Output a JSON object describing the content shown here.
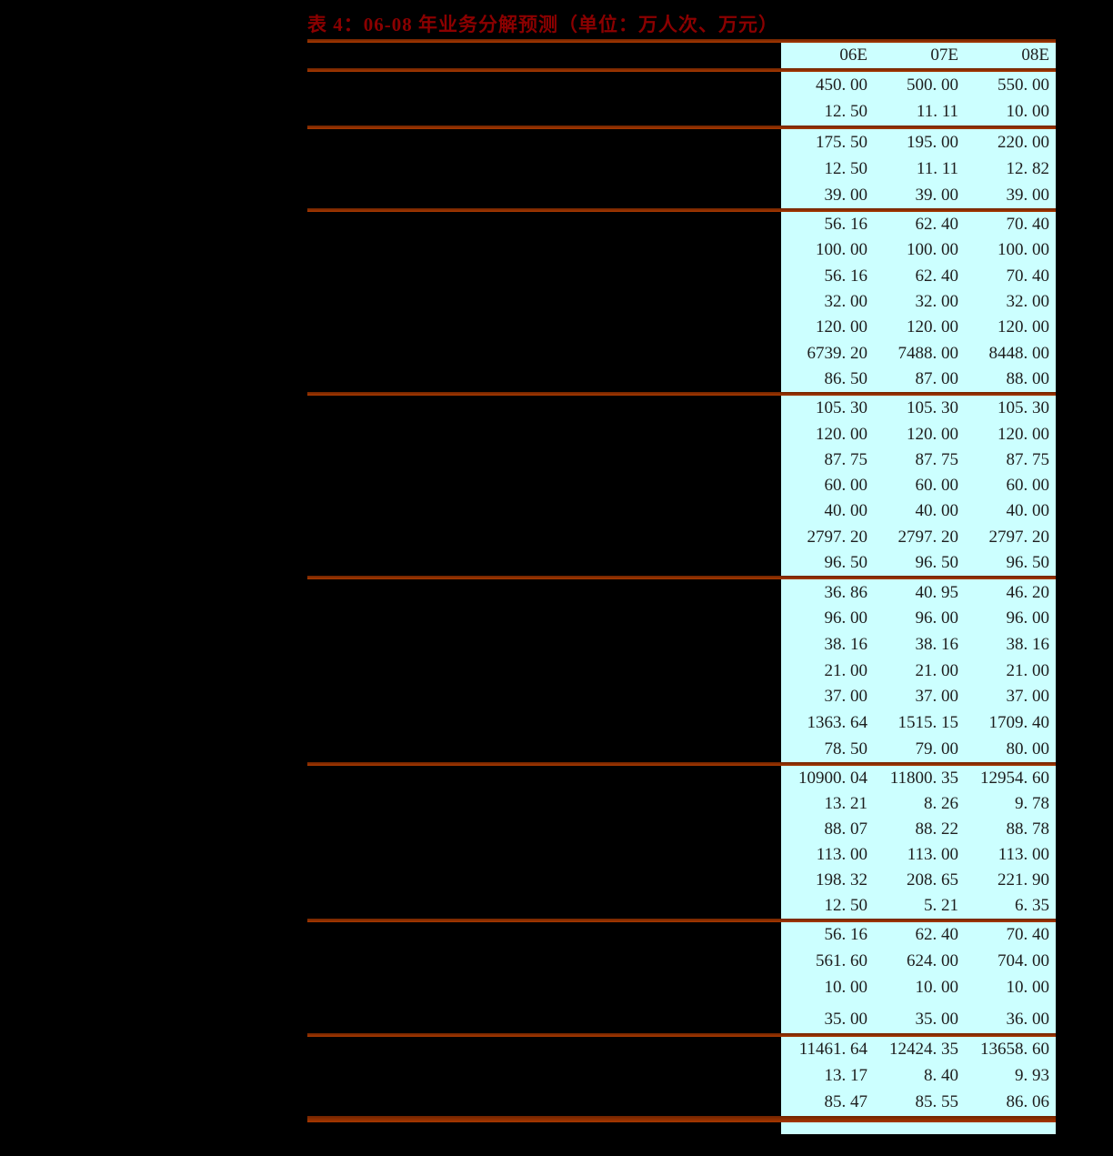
{
  "page": {
    "background_color": "#000000"
  },
  "table": {
    "title": "表 4：06-08 年业务分解预测（单位：万人次、万元）",
    "title_color": "#8b0000",
    "divider_color": "#9c3400",
    "data_background_color": "#ccffff",
    "value_text_color": "#1e1e1e",
    "columns": [
      "06E",
      "07E",
      "08E"
    ],
    "sections": [
      {
        "rows": [
          [
            "450. 00",
            "500. 00",
            "550. 00"
          ],
          [
            "12. 50",
            "11. 11",
            "10. 00"
          ]
        ]
      },
      {
        "rows": [
          [
            "175. 50",
            "195. 00",
            "220. 00"
          ],
          [
            "12. 50",
            "11. 11",
            "12. 82"
          ],
          [
            "39. 00",
            "39. 00",
            "39. 00"
          ]
        ]
      },
      {
        "rows": [
          [
            "56. 16",
            "62. 40",
            "70. 40"
          ],
          [
            "100. 00",
            "100. 00",
            "100. 00"
          ],
          [
            "56. 16",
            "62. 40",
            "70. 40"
          ],
          [
            "32. 00",
            "32. 00",
            "32. 00"
          ],
          [
            "120. 00",
            "120. 00",
            "120. 00"
          ],
          [
            "6739. 20",
            "7488. 00",
            "8448. 00"
          ],
          [
            "86. 50",
            "87. 00",
            "88. 00"
          ]
        ]
      },
      {
        "rows": [
          [
            "105. 30",
            "105. 30",
            "105. 30"
          ],
          [
            "120. 00",
            "120. 00",
            "120. 00"
          ],
          [
            "87. 75",
            "87. 75",
            "87. 75"
          ],
          [
            "60. 00",
            "60. 00",
            "60. 00"
          ],
          [
            "40. 00",
            "40. 00",
            "40. 00"
          ],
          [
            "2797. 20",
            "2797. 20",
            "2797. 20"
          ],
          [
            "96. 50",
            "96. 50",
            "96. 50"
          ]
        ]
      },
      {
        "rows": [
          [
            "36. 86",
            "40. 95",
            "46. 20"
          ],
          [
            "96. 00",
            "96. 00",
            "96. 00"
          ],
          [
            "38. 16",
            "38. 16",
            "38. 16"
          ],
          [
            "21. 00",
            "21. 00",
            "21. 00"
          ],
          [
            "37. 00",
            "37. 00",
            "37. 00"
          ],
          [
            "1363. 64",
            "1515. 15",
            "1709. 40"
          ],
          [
            "78. 50",
            "79. 00",
            "80. 00"
          ]
        ]
      },
      {
        "rows": [
          [
            "10900. 04",
            "11800. 35",
            "12954. 60"
          ],
          [
            "13. 21",
            "8. 26",
            "9. 78"
          ],
          [
            "88. 07",
            "88. 22",
            "88. 78"
          ],
          [
            "113. 00",
            "113. 00",
            "113. 00"
          ],
          [
            "198. 32",
            "208. 65",
            "221. 90"
          ],
          [
            "12. 50",
            "5. 21",
            "6. 35"
          ]
        ]
      },
      {
        "rows": [
          [
            "56. 16",
            "62. 40",
            "70. 40"
          ],
          [
            "561. 60",
            "624. 00",
            "704. 00"
          ],
          [
            "10. 00",
            "10. 00",
            "10. 00"
          ],
          [
            "35. 00",
            "35. 00",
            "36. 00"
          ]
        ]
      },
      {
        "rows": [
          [
            "11461. 64",
            "12424. 35",
            "13658. 60"
          ],
          [
            "13. 17",
            "8. 40",
            "9. 93"
          ],
          [
            "85. 47",
            "85. 55",
            "86. 06"
          ]
        ]
      }
    ]
  },
  "chart_data": {
    "type": "table",
    "title": "表 4：06-08 年业务分解预测（单位：万人次、万元）",
    "columns": [
      "06E",
      "07E",
      "08E"
    ],
    "rows": [
      [
        "450.00",
        "500.00",
        "550.00"
      ],
      [
        "12.50",
        "11.11",
        "10.00"
      ],
      [
        "175.50",
        "195.00",
        "220.00"
      ],
      [
        "12.50",
        "11.11",
        "12.82"
      ],
      [
        "39.00",
        "39.00",
        "39.00"
      ],
      [
        "56.16",
        "62.40",
        "70.40"
      ],
      [
        "100.00",
        "100.00",
        "100.00"
      ],
      [
        "56.16",
        "62.40",
        "70.40"
      ],
      [
        "32.00",
        "32.00",
        "32.00"
      ],
      [
        "120.00",
        "120.00",
        "120.00"
      ],
      [
        "6739.20",
        "7488.00",
        "8448.00"
      ],
      [
        "86.50",
        "87.00",
        "88.00"
      ],
      [
        "105.30",
        "105.30",
        "105.30"
      ],
      [
        "120.00",
        "120.00",
        "120.00"
      ],
      [
        "87.75",
        "87.75",
        "87.75"
      ],
      [
        "60.00",
        "60.00",
        "60.00"
      ],
      [
        "40.00",
        "40.00",
        "40.00"
      ],
      [
        "2797.20",
        "2797.20",
        "2797.20"
      ],
      [
        "96.50",
        "96.50",
        "96.50"
      ],
      [
        "36.86",
        "40.95",
        "46.20"
      ],
      [
        "96.00",
        "96.00",
        "96.00"
      ],
      [
        "38.16",
        "38.16",
        "38.16"
      ],
      [
        "21.00",
        "21.00",
        "21.00"
      ],
      [
        "37.00",
        "37.00",
        "37.00"
      ],
      [
        "1363.64",
        "1515.15",
        "1709.40"
      ],
      [
        "78.50",
        "79.00",
        "80.00"
      ],
      [
        "10900.04",
        "11800.35",
        "12954.60"
      ],
      [
        "13.21",
        "8.26",
        "9.78"
      ],
      [
        "88.07",
        "88.22",
        "88.78"
      ],
      [
        "113.00",
        "113.00",
        "113.00"
      ],
      [
        "198.32",
        "208.65",
        "221.90"
      ],
      [
        "12.50",
        "5.21",
        "6.35"
      ],
      [
        "56.16",
        "62.40",
        "70.40"
      ],
      [
        "561.60",
        "624.00",
        "704.00"
      ],
      [
        "10.00",
        "10.00",
        "10.00"
      ],
      [
        "35.00",
        "35.00",
        "36.00"
      ],
      [
        "11461.64",
        "12424.35",
        "13658.60"
      ],
      [
        "13.17",
        "8.40",
        "9.93"
      ],
      [
        "85.47",
        "85.55",
        "86.06"
      ]
    ]
  }
}
